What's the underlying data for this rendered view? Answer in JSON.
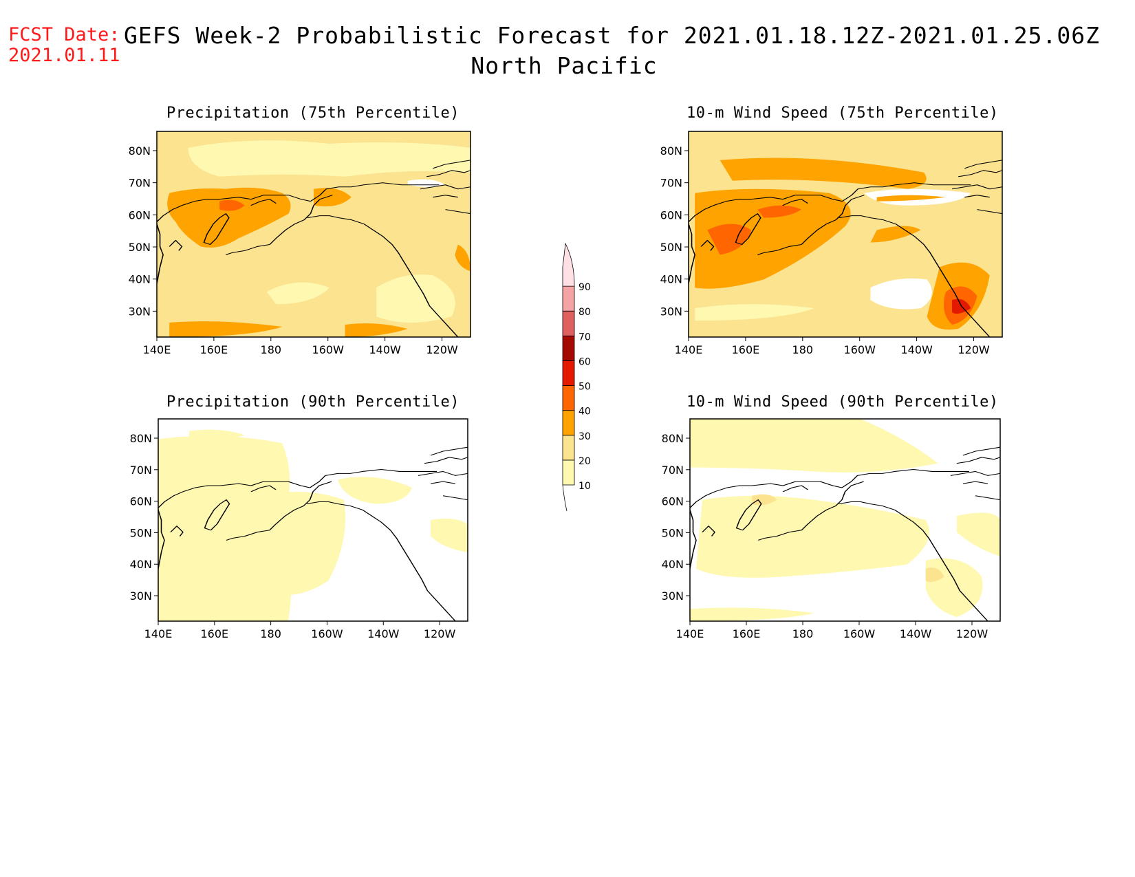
{
  "header": {
    "fcst_label": "FCST Date:",
    "fcst_date": "2021.01.11",
    "title": "GEFS Week-2 Probabilistic Forecast for 2021.01.18.12Z-2021.01.25.06Z",
    "subtitle": "North Pacific"
  },
  "colorbar": {
    "levels": [
      "10",
      "20",
      "30",
      "40",
      "50",
      "60",
      "70",
      "80",
      "90"
    ],
    "colors": [
      "#fff8b0",
      "#fbe390",
      "#ffa300",
      "#ff6500",
      "#e41a00",
      "#a50a00",
      "#e06060",
      "#f4a4a4",
      "#ffe0e4"
    ]
  },
  "axes": {
    "lon_ticks": [
      "140E",
      "160E",
      "180",
      "160W",
      "140W",
      "120W"
    ],
    "lat_ticks": [
      "80N",
      "70N",
      "60N",
      "50N",
      "40N",
      "30N"
    ]
  },
  "panels": [
    {
      "id": "precip75",
      "title": "Precipitation (75th Percentile)"
    },
    {
      "id": "wind75",
      "title": "10-m Wind Speed (75th Percentile)"
    },
    {
      "id": "precip90",
      "title": "Precipitation (90th Percentile)"
    },
    {
      "id": "wind90",
      "title": "10-m Wind Speed (90th Percentile)"
    }
  ]
}
